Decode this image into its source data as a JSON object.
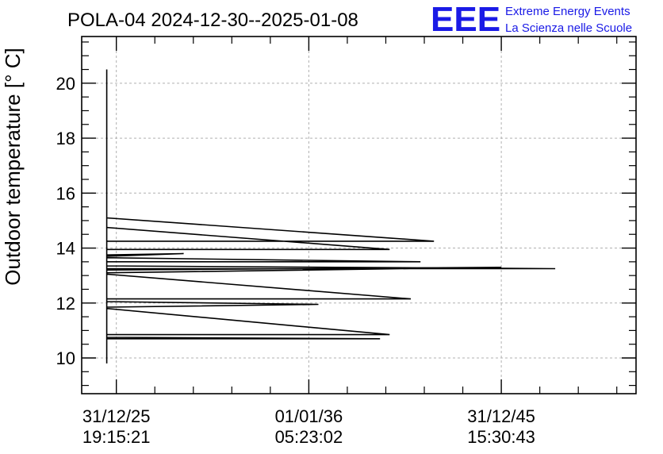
{
  "header": {
    "title": "POLA-04 2024-12-30--2025-01-08"
  },
  "logo": {
    "mark": "EEE",
    "line1": "Extreme Energy Events",
    "line2": "La Scienza nelle Scuole",
    "color": "#1a1ae6"
  },
  "chart_data": {
    "type": "line",
    "ylabel": "Outdoor temperature [° C]",
    "xlabel": "",
    "ylim": [
      8.7,
      21.7
    ],
    "xlim": [
      -1.8,
      27.0
    ],
    "yticks": [
      10,
      12,
      14,
      16,
      18,
      20
    ],
    "xticks": [
      {
        "x": 0,
        "date": "31/12/25",
        "time": "19:15:21"
      },
      {
        "x": 10,
        "date": "01/01/36",
        "time": "05:23:02"
      },
      {
        "x": 20,
        "date": "31/12/45",
        "time": "15:30:43"
      }
    ],
    "grid": true,
    "line_color": "#000000",
    "series": [
      {
        "values": [
          [
            -0.5,
            9.8
          ],
          [
            -0.5,
            20.5
          ],
          [
            -0.5,
            15.1
          ],
          [
            16.5,
            14.25
          ],
          [
            -0.5,
            14.25
          ],
          [
            -0.5,
            14.75
          ],
          [
            14.2,
            13.95
          ],
          [
            -0.5,
            13.95
          ],
          [
            -0.5,
            13.75
          ],
          [
            3.5,
            13.8
          ],
          [
            -0.5,
            13.7
          ],
          [
            -0.5,
            13.65
          ],
          [
            15.8,
            13.5
          ],
          [
            -0.5,
            13.5
          ],
          [
            -0.5,
            13.35
          ],
          [
            22.8,
            13.25
          ],
          [
            -0.5,
            13.25
          ],
          [
            -0.5,
            13.2
          ],
          [
            20.0,
            13.3
          ],
          [
            -0.5,
            13.1
          ],
          [
            -0.5,
            13.05
          ],
          [
            15.3,
            12.15
          ],
          [
            -0.5,
            12.15
          ],
          [
            -0.5,
            12.05
          ],
          [
            10.5,
            11.95
          ],
          [
            -0.5,
            11.85
          ],
          [
            -0.5,
            11.8
          ],
          [
            14.2,
            10.85
          ],
          [
            -0.5,
            10.85
          ],
          [
            -0.5,
            10.75
          ],
          [
            13.7,
            10.7
          ],
          [
            -0.5,
            10.7
          ]
        ]
      }
    ]
  }
}
